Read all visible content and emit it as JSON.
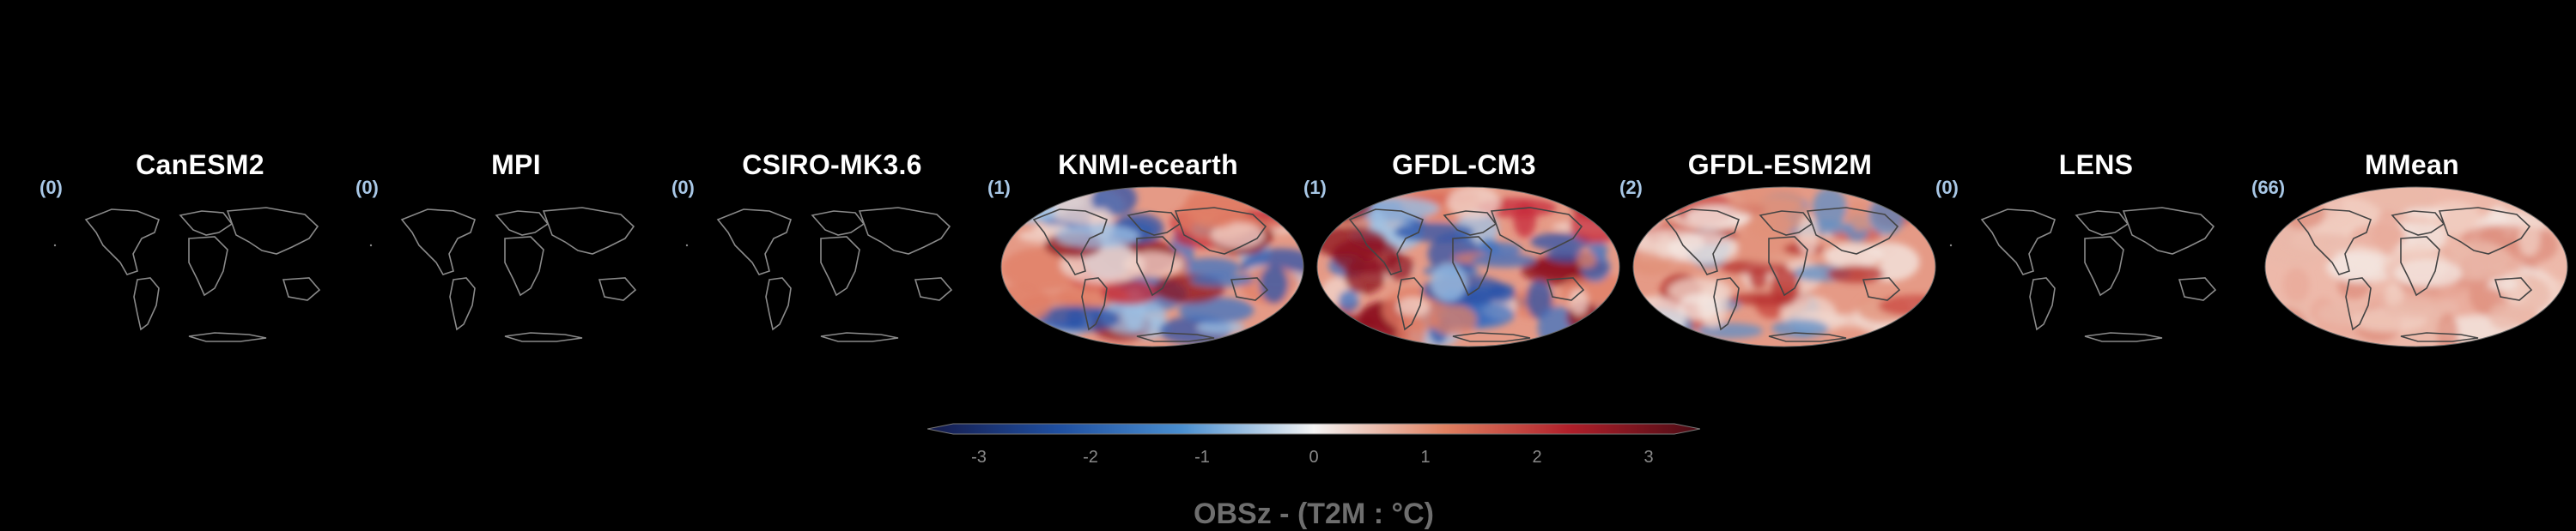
{
  "panels": [
    {
      "title": "CanESM2",
      "count": "(0)",
      "filled": false
    },
    {
      "title": "MPI",
      "count": "(0)",
      "filled": false
    },
    {
      "title": "CSIRO-MK3.6",
      "count": "(0)",
      "filled": false
    },
    {
      "title": "KNMI-ecearth",
      "count": "(1)",
      "filled": true,
      "style": "strong"
    },
    {
      "title": "GFDL-CM3",
      "count": "(1)",
      "filled": true,
      "style": "strong"
    },
    {
      "title": "GFDL-ESM2M",
      "count": "(2)",
      "filled": true,
      "style": "medium"
    },
    {
      "title": "LENS",
      "count": "(0)",
      "filled": false
    },
    {
      "title": "MMean",
      "count": "(66)",
      "filled": true,
      "style": "light"
    }
  ],
  "colorbar": {
    "ticks": [
      "-3",
      "-2",
      "-1",
      "0",
      "1",
      "2",
      "3"
    ],
    "label": "OBSz - (T2M : °C)",
    "colors": [
      "#151a4a",
      "#1f4fa0",
      "#4a8fd0",
      "#f4f4f4",
      "#e08060",
      "#b01f2a",
      "#4a0b14"
    ]
  }
}
